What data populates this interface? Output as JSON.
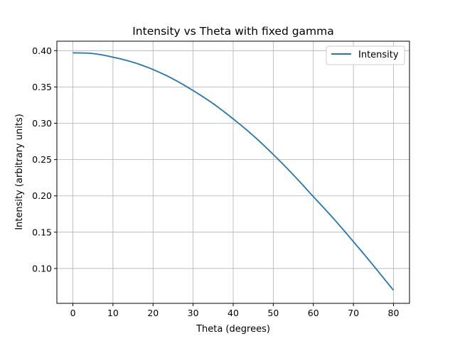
{
  "chart_data": {
    "type": "line",
    "title": "Intensity vs Theta with fixed gamma",
    "xlabel": "Theta (degrees)",
    "ylabel": "Intensity (arbitrary units)",
    "xlim": [
      -4,
      84
    ],
    "ylim": [
      0.052,
      0.413
    ],
    "xticks": [
      0,
      10,
      20,
      30,
      40,
      50,
      60,
      70,
      80
    ],
    "yticks": [
      0.1,
      0.15,
      0.2,
      0.25,
      0.3,
      0.35,
      0.4
    ],
    "ytick_labels": [
      "0.10",
      "0.15",
      "0.20",
      "0.25",
      "0.30",
      "0.35",
      "0.40"
    ],
    "grid": true,
    "legend": {
      "position": "top-right"
    },
    "series": [
      {
        "name": "Intensity",
        "color": "#1f77b4",
        "x": [
          0,
          5,
          10,
          15,
          20,
          25,
          30,
          35,
          40,
          45,
          50,
          55,
          60,
          65,
          70,
          75,
          80
        ],
        "y": [
          0.397,
          0.396,
          0.391,
          0.384,
          0.374,
          0.361,
          0.345,
          0.327,
          0.306,
          0.283,
          0.257,
          0.229,
          0.199,
          0.169,
          0.137,
          0.104,
          0.07
        ]
      }
    ]
  }
}
